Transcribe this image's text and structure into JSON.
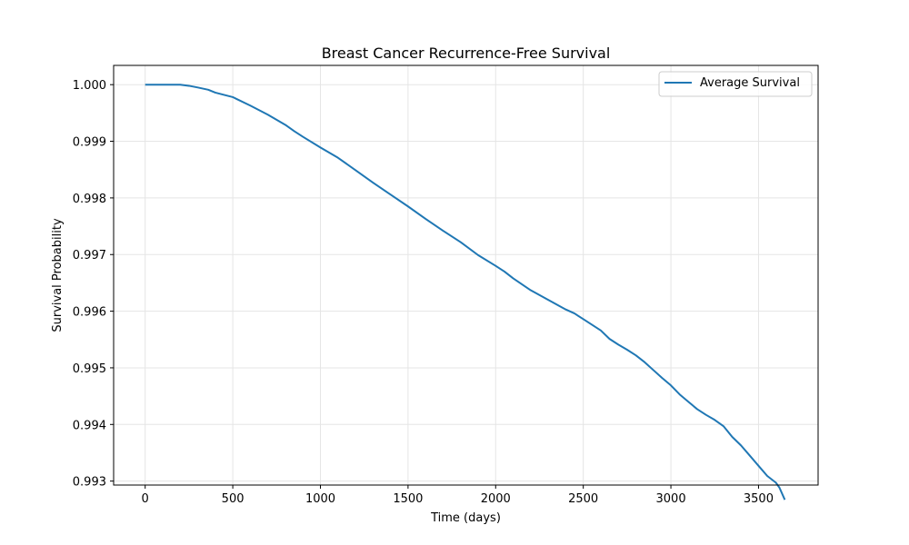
{
  "chart_data": {
    "type": "line",
    "title": "Breast Cancer Recurrence-Free Survival",
    "xlabel": "Time (days)",
    "ylabel": "Survival Probability",
    "xlim": [
      -180,
      3840
    ],
    "ylim": [
      0.99293,
      1.00034
    ],
    "xticks": [
      0,
      500,
      1000,
      1500,
      2000,
      2500,
      3000,
      3500
    ],
    "xtick_labels": [
      "0",
      "500",
      "1000",
      "1500",
      "2000",
      "2500",
      "3000",
      "3500"
    ],
    "yticks": [
      0.993,
      0.994,
      0.995,
      0.996,
      0.997,
      0.998,
      0.999,
      1.0
    ],
    "ytick_labels": [
      "0.993",
      "0.994",
      "0.995",
      "0.996",
      "0.997",
      "0.998",
      "0.999",
      "1.000"
    ],
    "grid": true,
    "legend_position": "top-right",
    "series": [
      {
        "name": "Average Survival",
        "color": "#1f77b4",
        "x": [
          0,
          100,
          150,
          200,
          250,
          300,
          360,
          400,
          450,
          500,
          520,
          600,
          700,
          800,
          850,
          900,
          1000,
          1100,
          1200,
          1300,
          1400,
          1500,
          1600,
          1700,
          1800,
          1900,
          2000,
          2050,
          2100,
          2200,
          2300,
          2400,
          2450,
          2500,
          2600,
          2650,
          2700,
          2750,
          2800,
          2850,
          2900,
          2950,
          3000,
          3050,
          3100,
          3150,
          3200,
          3250,
          3300,
          3350,
          3400,
          3450,
          3500,
          3550,
          3600,
          3620,
          3650
        ],
        "y": [
          1.0,
          1.0,
          1.0,
          1.0,
          0.99998,
          0.99995,
          0.99991,
          0.99986,
          0.99982,
          0.99978,
          0.99975,
          0.99963,
          0.99947,
          0.99929,
          0.99918,
          0.99908,
          0.99889,
          0.99871,
          0.99849,
          0.99827,
          0.99806,
          0.99785,
          0.99763,
          0.99742,
          0.99722,
          0.99699,
          0.9968,
          0.9967,
          0.99658,
          0.99637,
          0.9962,
          0.99603,
          0.99596,
          0.99586,
          0.99566,
          0.99551,
          0.99541,
          0.99532,
          0.99522,
          0.9951,
          0.99496,
          0.99482,
          0.99469,
          0.99453,
          0.9944,
          0.99427,
          0.99417,
          0.99408,
          0.99397,
          0.99378,
          0.99363,
          0.99345,
          0.99327,
          0.99309,
          0.99297,
          0.99288,
          0.99267
        ]
      }
    ]
  }
}
